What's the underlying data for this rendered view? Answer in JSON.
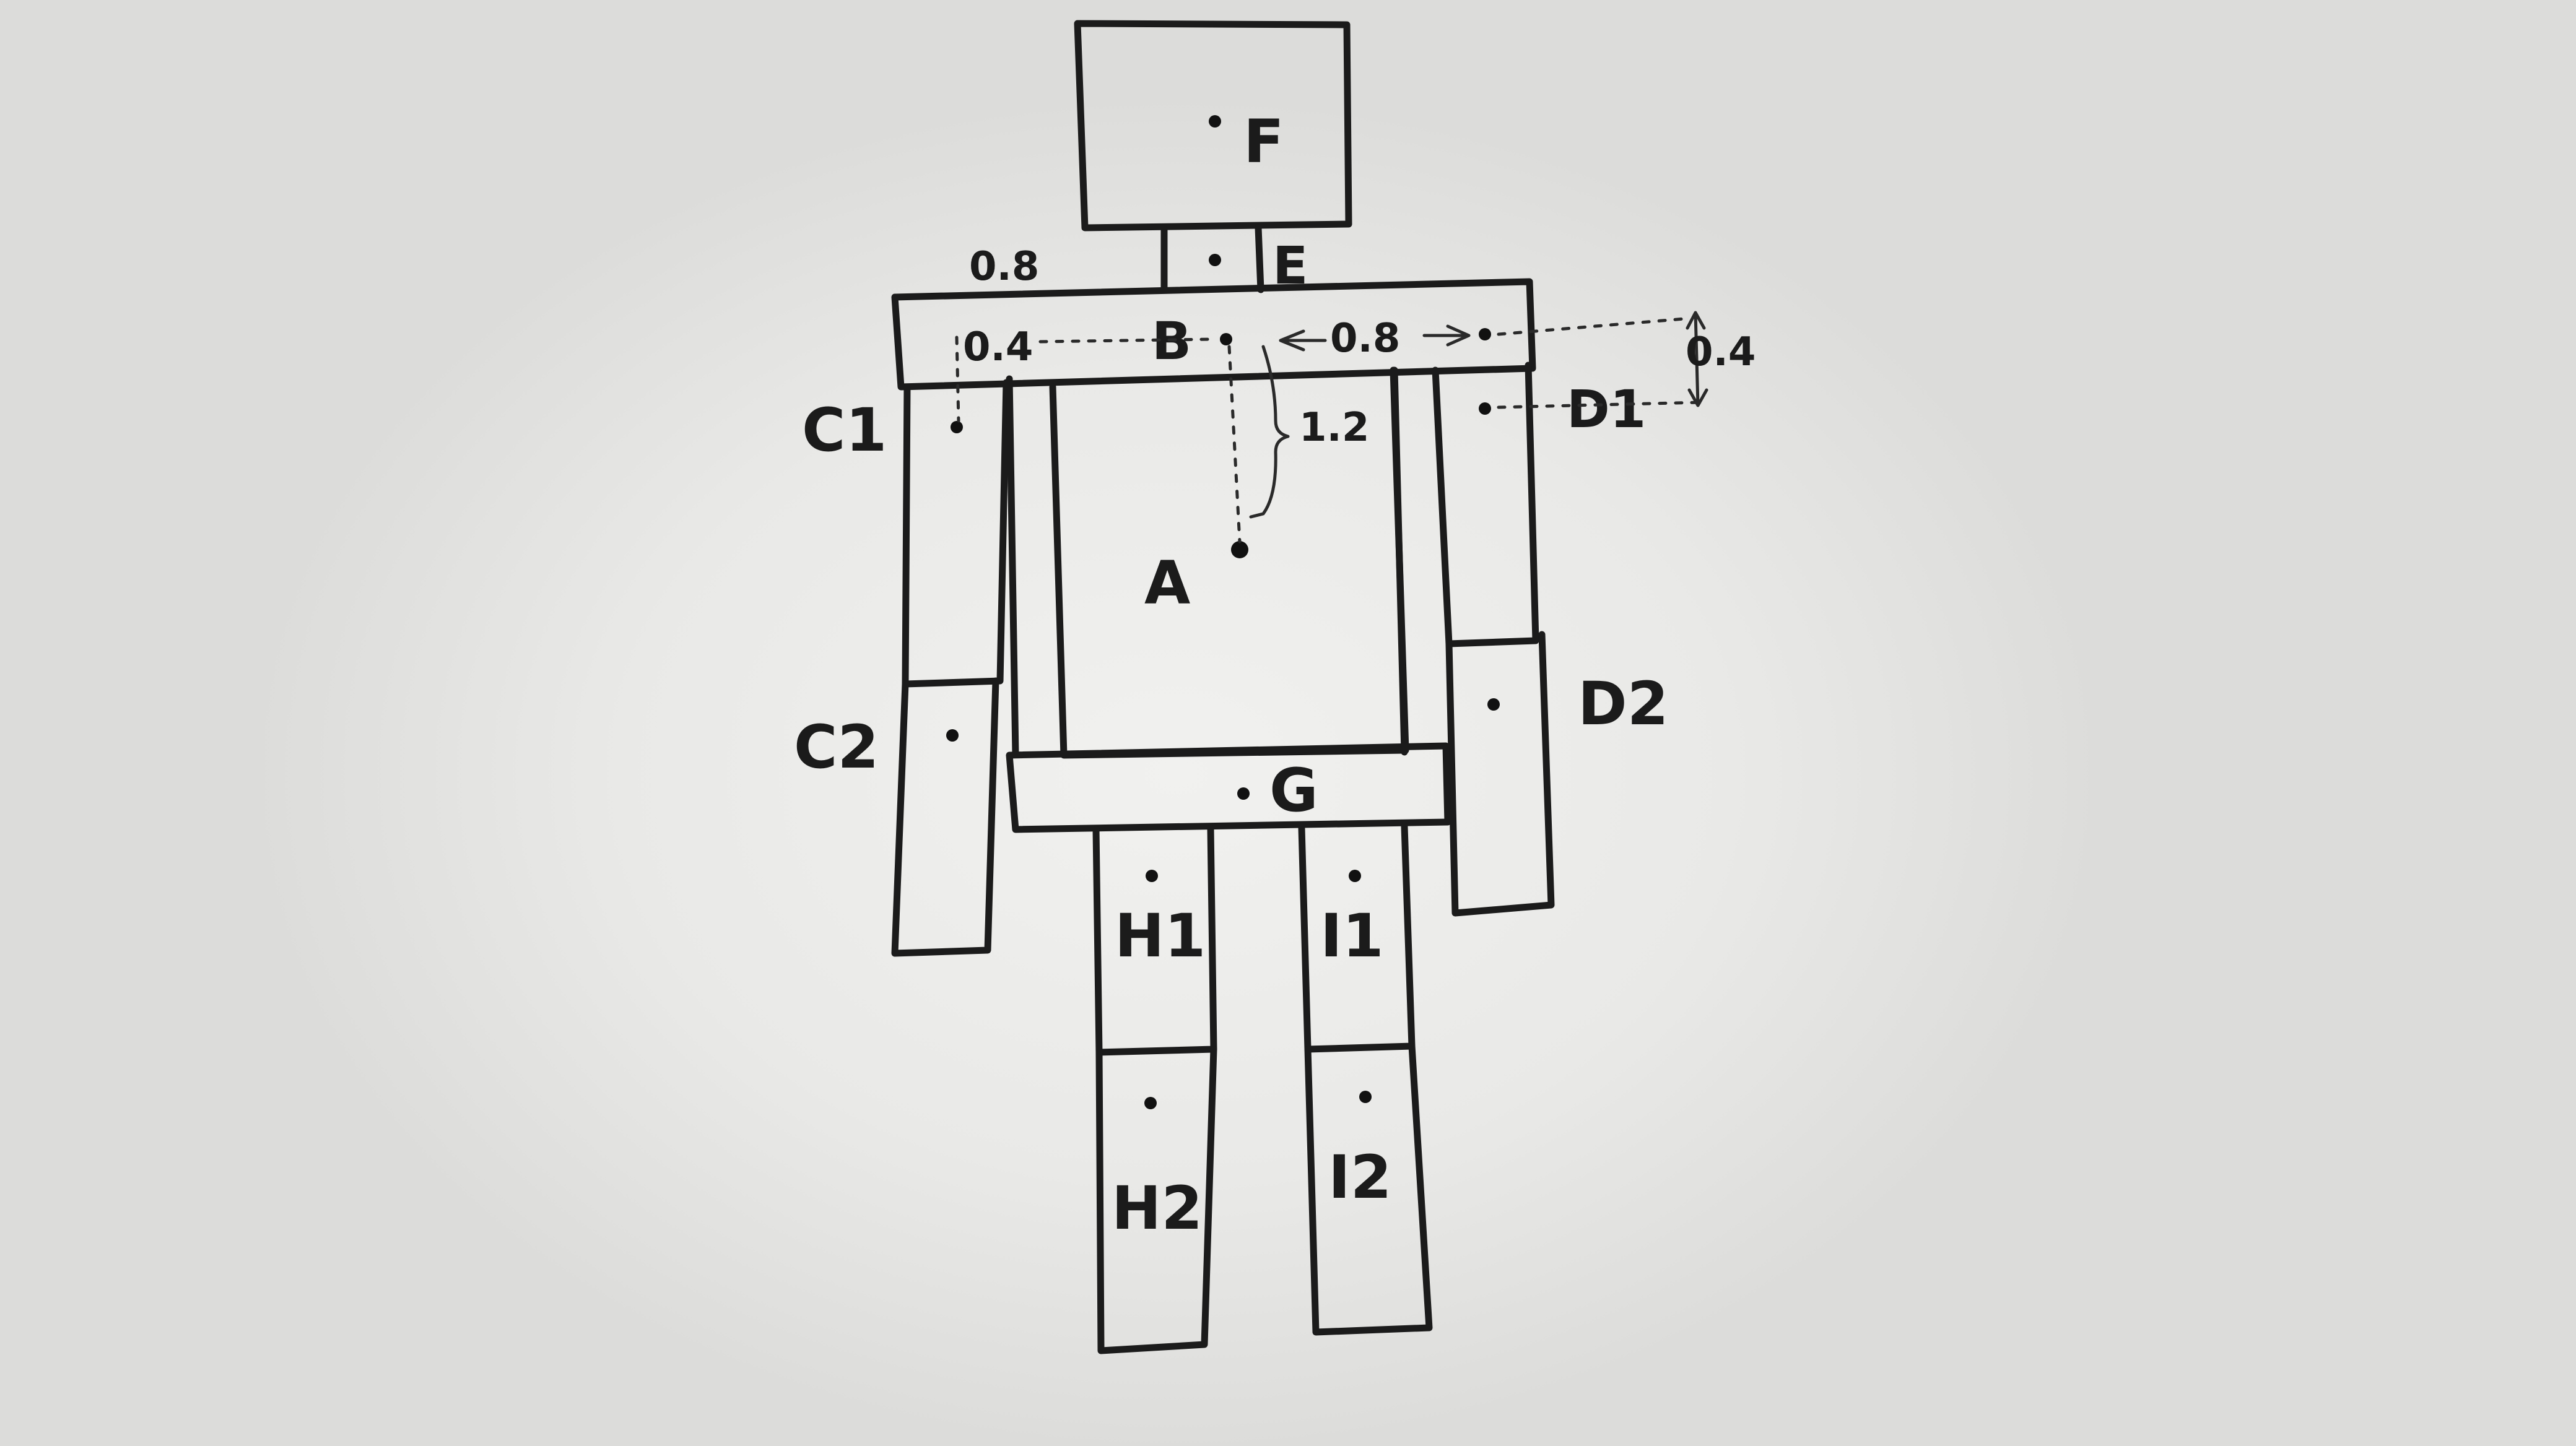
{
  "labels": {
    "A": "A",
    "B": "B",
    "C1": "C1",
    "C2": "C2",
    "D1": "D1",
    "D2": "D2",
    "E": "E",
    "F": "F",
    "G": "G",
    "H1": "H1",
    "H2": "H2",
    "I1": "I1",
    "I2": "I2"
  },
  "dimensions": {
    "shoulder_top": "0.8",
    "shoulder_left_inner": "0.4",
    "shoulder_right": "0.8",
    "torso_offset": "1.2",
    "arm_drop": "0.4"
  }
}
